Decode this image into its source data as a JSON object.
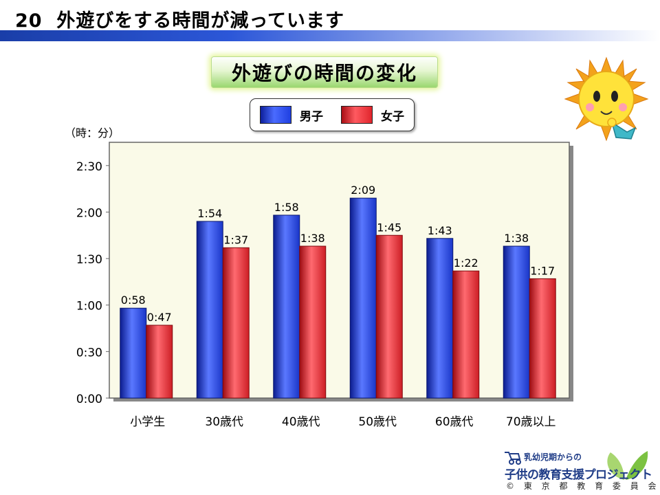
{
  "slide": {
    "number": "20",
    "title": "外遊びをする時間が減っています"
  },
  "chart_title": "外遊びの時間の変化",
  "legend": [
    {
      "label": "男子",
      "color": "#1f3fe0"
    },
    {
      "label": "女子",
      "color": "#e0252c"
    }
  ],
  "unit_label": "（時：分）",
  "chart_data": {
    "type": "bar",
    "title": "外遊びの時間の変化",
    "categories": [
      "小学生",
      "30歳代",
      "40歳代",
      "50歳代",
      "60歳代",
      "70歳以上"
    ],
    "series": [
      {
        "name": "男子",
        "values": [
          58,
          114,
          118,
          129,
          103,
          98
        ],
        "labels": [
          "0:58",
          "1:54",
          "1:58",
          "2:09",
          "1:43",
          "1:38"
        ],
        "color": "#1f3fe0"
      },
      {
        "name": "女子",
        "values": [
          47,
          97,
          98,
          105,
          82,
          77
        ],
        "labels": [
          "0:47",
          "1:37",
          "1:38",
          "1:45",
          "1:22",
          "1:17"
        ],
        "color": "#e0252c"
      }
    ],
    "y_unit": "minutes",
    "ylim": [
      0,
      165
    ],
    "yticks": [
      0,
      30,
      60,
      90,
      120,
      150
    ],
    "ytick_labels": [
      "0:00",
      "0:30",
      "1:00",
      "1:30",
      "2:00",
      "2:30"
    ],
    "ylabel": "（時：分）",
    "plot_background": "#fafae8",
    "grid": false,
    "legend_position": "top"
  },
  "logo": {
    "line1": "乳幼児期からの",
    "line2": "子供の教育支援プロジェクト",
    "line3": "© 東 京 都 教 育 委 員 会"
  }
}
